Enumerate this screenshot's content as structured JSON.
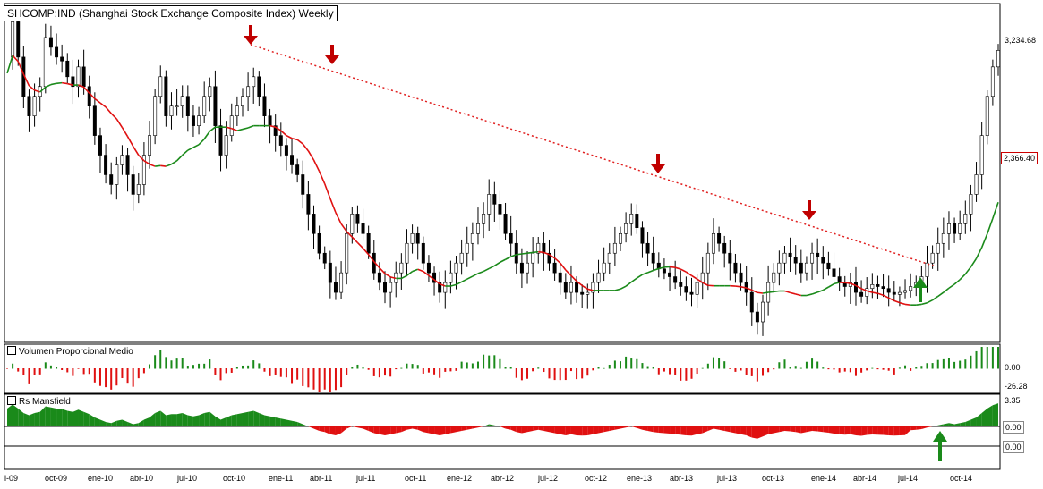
{
  "chart_data": {
    "type": "candlestick",
    "title": "SHCOMP:IND (Shanghai Stock Exchange Composite Index) Weekly",
    "x_labels": [
      "l-09",
      "oct-09",
      "ene-10",
      "abr-10",
      "jul-10",
      "oct-10",
      "ene-11",
      "abr-11",
      "jul-11",
      "oct-11",
      "ene-12",
      "abr-12",
      "jul-12",
      "oct-12",
      "ene-13",
      "abr-13",
      "jul-13",
      "oct-13",
      "ene-14",
      "abr-14",
      "jul-14",
      "oct-14"
    ],
    "price_labels": {
      "last": "3,234.68",
      "ma": "2,366.40"
    },
    "panels": [
      {
        "name": "Volumen Proporcional Medio",
        "labels": [
          "0.00",
          "-26.28"
        ]
      },
      {
        "name": "Rs Mansfield",
        "labels": [
          "3.35",
          "0.00",
          "0.00"
        ]
      }
    ],
    "price_series": [
      3200,
      3380,
      3200,
      3000,
      2900,
      3000,
      3050,
      3300,
      3250,
      3200,
      3180,
      3100,
      3050,
      3150,
      3050,
      2950,
      2800,
      2700,
      2600,
      2550,
      2650,
      2700,
      2600,
      2500,
      2550,
      2700,
      2800,
      3000,
      3100,
      2900,
      2950,
      2950,
      3000,
      2900,
      2850,
      2900,
      3000,
      3050,
      2850,
      2700,
      2800,
      2900,
      2950,
      3000,
      3050,
      3100,
      3000,
      2900,
      2850,
      2800,
      2750,
      2700,
      2650,
      2600,
      2500,
      2400,
      2300,
      2200,
      2150,
      2050,
      2000,
      2100,
      2300,
      2400,
      2350,
      2300,
      2200,
      2100,
      2050,
      2000,
      2050,
      2100,
      2150,
      2250,
      2300,
      2250,
      2150,
      2100,
      2050,
      2000,
      2050,
      2100,
      2150,
      2200,
      2250,
      2300,
      2350,
      2400,
      2500,
      2450,
      2400,
      2300,
      2250,
      2150,
      2100,
      2150,
      2200,
      2250,
      2200,
      2150,
      2100,
      2050,
      2000,
      2050,
      2000,
      1990,
      2000,
      2050,
      2100,
      2150,
      2200,
      2250,
      2300,
      2350,
      2400,
      2330,
      2250,
      2200,
      2150,
      2120,
      2100,
      2080,
      2050,
      2030,
      2000,
      1990,
      2050,
      2100,
      2200,
      2300,
      2250,
      2200,
      2150,
      2100,
      2050,
      2000,
      1900,
      1850,
      1950,
      2050,
      2100,
      2150,
      2200,
      2180,
      2150,
      2100,
      2150,
      2200,
      2180,
      2150,
      2120,
      2080,
      2050,
      2030,
      2050,
      2000,
      1980,
      2020,
      2040,
      2030,
      2020,
      2000,
      1990,
      2000,
      2010,
      2030,
      2050,
      2080,
      2150,
      2200,
      2250,
      2300,
      2350,
      2300,
      2350,
      2400,
      2500,
      2600,
      2800,
      3000,
      3150,
      3234
    ]
  }
}
